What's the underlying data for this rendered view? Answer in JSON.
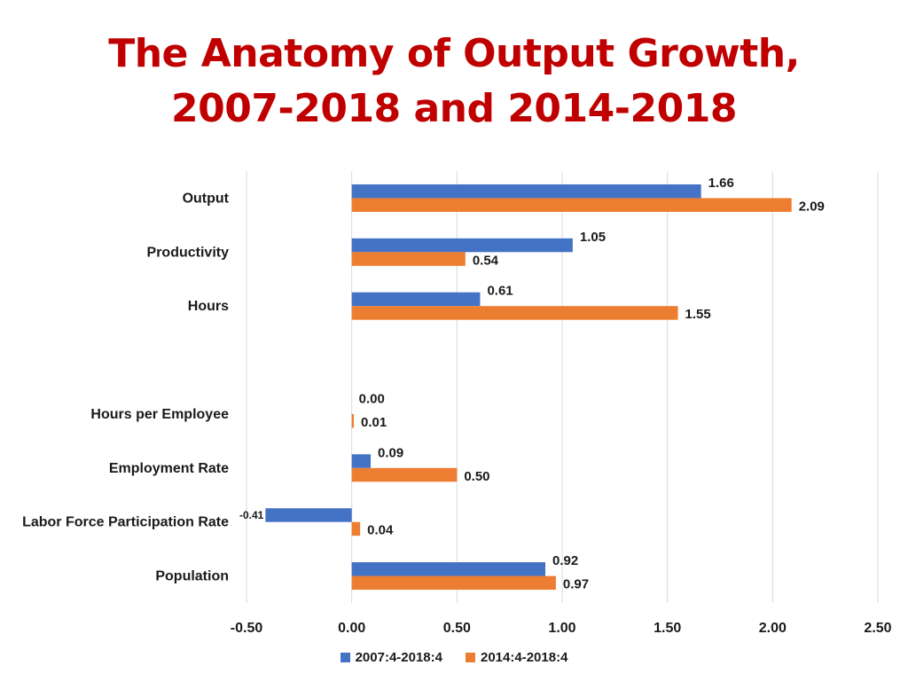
{
  "chart_data": {
    "type": "bar",
    "orientation": "horizontal",
    "title": [
      "The Anatomy of Output Growth,",
      "2007-2018 and 2014-2018"
    ],
    "categories": [
      "Output",
      "Productivity",
      "Hours",
      "",
      "Hours per Employee",
      "Employment Rate",
      "Labor Force Participation Rate",
      "Population"
    ],
    "series": [
      {
        "name": "2007:4-2018:4",
        "color": "#4472c4",
        "values": [
          1.66,
          1.05,
          0.61,
          null,
          0.0,
          0.09,
          -0.41,
          0.92
        ],
        "labels": [
          "1.66",
          "1.05",
          "0.61",
          "",
          "0.00",
          "0.09",
          "-0.41",
          "0.92"
        ]
      },
      {
        "name": "2014:4-2018:4",
        "color": "#ed7d31",
        "values": [
          2.09,
          0.54,
          1.55,
          null,
          0.01,
          0.5,
          0.04,
          0.97
        ],
        "labels": [
          "2.09",
          "0.54",
          "1.55",
          "",
          "0.01",
          "0.50",
          "0.04",
          "0.97"
        ]
      }
    ],
    "xlim": [
      -0.5,
      2.5
    ],
    "ticks": [
      -0.5,
      0,
      0.5,
      1.0,
      1.5,
      2.0,
      2.5
    ],
    "tick_labels": [
      "-0.50",
      "0.00",
      "0.50",
      "1.00",
      "1.50",
      "2.00",
      "2.50"
    ],
    "grid": true,
    "legend_position": "bottom"
  }
}
